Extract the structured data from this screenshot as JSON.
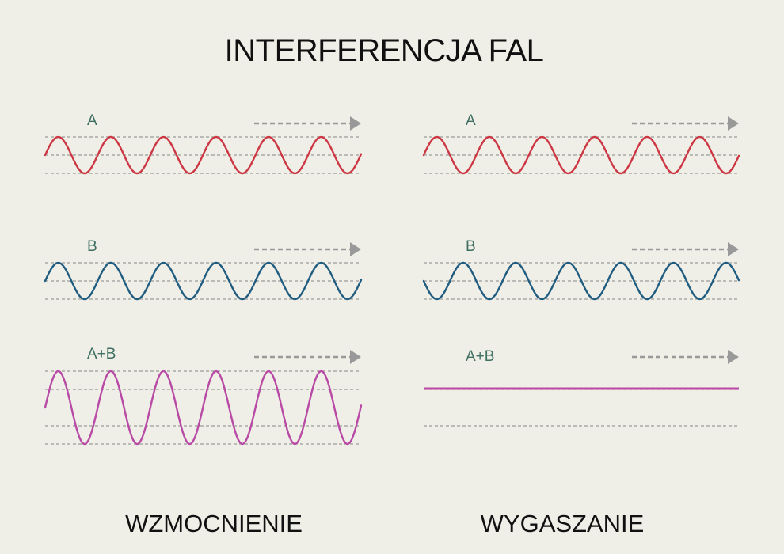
{
  "title": "INTERFERENCJA FAL",
  "colors": {
    "background": "#efeee7",
    "wave_a": "#cc3743",
    "wave_b": "#1f5c80",
    "wave_sum": "#b84aa5",
    "guide_lines": "#9a9a9a",
    "arrow": "#999999",
    "labels": "#3f6f62"
  },
  "panels": [
    {
      "caption": "WZMOCNIENIE",
      "waves": [
        {
          "label": "A"
        },
        {
          "label": "B"
        },
        {
          "label": "A+B"
        }
      ]
    },
    {
      "caption": "WYGASZANIE",
      "waves": [
        {
          "label": "A"
        },
        {
          "label": "B"
        },
        {
          "label": "A+B"
        }
      ]
    }
  ]
}
